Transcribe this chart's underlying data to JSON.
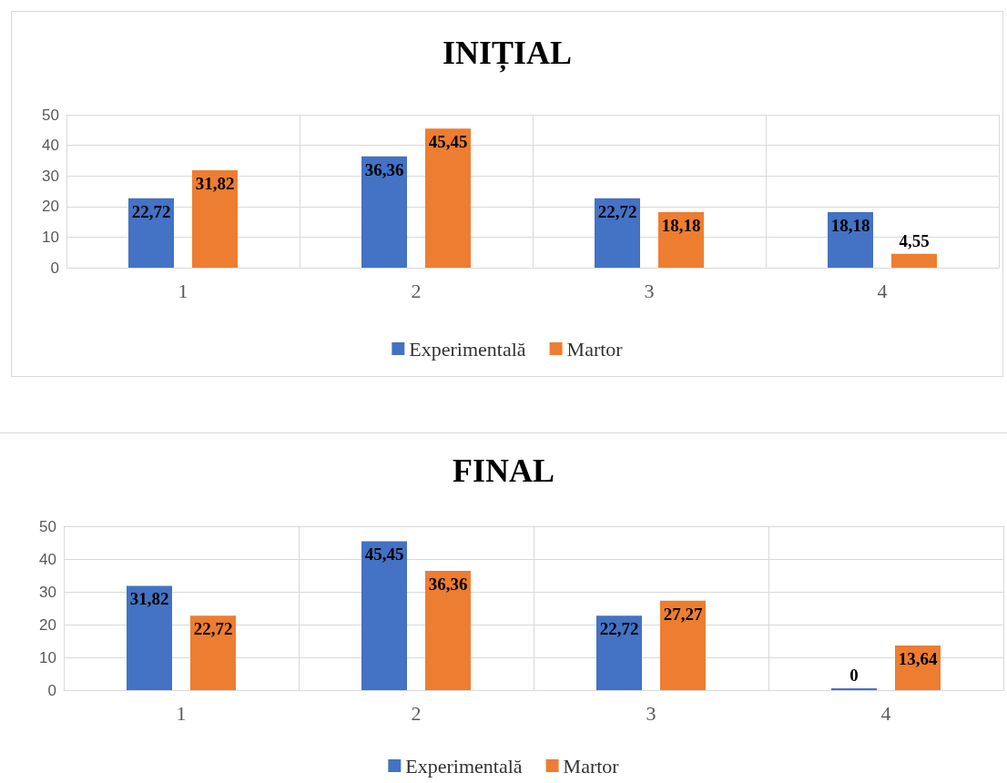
{
  "chart_data": [
    {
      "type": "bar",
      "title": "INIȚIAL",
      "categories": [
        "1",
        "2",
        "3",
        "4"
      ],
      "series": [
        {
          "name": "Experimentală",
          "color": "#4472c4",
          "values": [
            22.72,
            36.36,
            22.72,
            18.18
          ],
          "value_labels": [
            "22,72",
            "36,36",
            "22,72",
            "18,18"
          ]
        },
        {
          "name": "Martor",
          "color": "#ed7d31",
          "values": [
            31.82,
            45.45,
            18.18,
            4.55
          ],
          "value_labels": [
            "31,82",
            "45,45",
            "18,18",
            "4,55"
          ]
        }
      ],
      "ylim": [
        0,
        50
      ],
      "yticks": [
        0,
        10,
        20,
        30,
        40,
        50
      ],
      "grid": true,
      "legend": "bottom"
    },
    {
      "type": "bar",
      "title": "FINAL",
      "categories": [
        "1",
        "2",
        "3",
        "4"
      ],
      "series": [
        {
          "name": "Experimentală",
          "color": "#4472c4",
          "values": [
            31.82,
            45.45,
            22.72,
            0
          ],
          "value_labels": [
            "31,82",
            "45,45",
            "22,72",
            "0"
          ]
        },
        {
          "name": "Martor",
          "color": "#ed7d31",
          "values": [
            22.72,
            36.36,
            27.27,
            13.64
          ],
          "value_labels": [
            "22,72",
            "36,36",
            "27,27",
            "13,64"
          ]
        }
      ],
      "ylim": [
        0,
        50
      ],
      "yticks": [
        0,
        10,
        20,
        30,
        40,
        50
      ],
      "grid": true,
      "legend": "bottom"
    }
  ]
}
